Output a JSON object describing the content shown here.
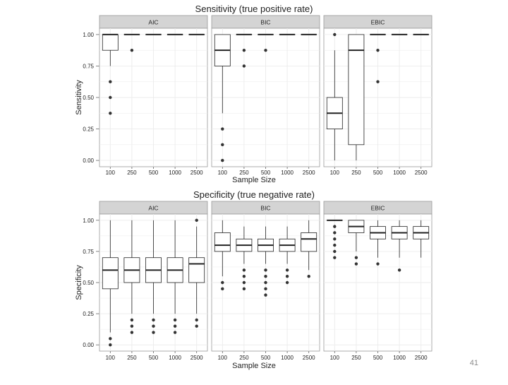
{
  "slide": {
    "number": "41"
  },
  "colors": {
    "strip": "#d4d4d4",
    "panel_border": "#9a9a9a",
    "grid": "#ebebeb",
    "box": "#222222"
  },
  "chart_data": [
    {
      "type": "boxplot",
      "title": "Sensitivity (true positive rate)",
      "xlabel": "Sample Size",
      "ylabel": "Sensitivity",
      "ylim": [
        0,
        1
      ],
      "yticks": [
        "0.00",
        "0.25",
        "0.50",
        "0.75",
        "1.00"
      ],
      "categories": [
        "100",
        "250",
        "500",
        "1000",
        "2500"
      ],
      "grid": true,
      "facets": [
        {
          "name": "AIC",
          "boxes": [
            {
              "q1": 0.875,
              "median": 1.0,
              "q3": 1.0,
              "whislo": 0.75,
              "whishi": 1.0,
              "fliers": [
                0.625,
                0.5,
                0.375
              ]
            },
            {
              "q1": 1.0,
              "median": 1.0,
              "q3": 1.0,
              "whislo": 1.0,
              "whishi": 1.0,
              "fliers": [
                0.875
              ]
            },
            {
              "q1": 1.0,
              "median": 1.0,
              "q3": 1.0,
              "whislo": 1.0,
              "whishi": 1.0,
              "fliers": []
            },
            {
              "q1": 1.0,
              "median": 1.0,
              "q3": 1.0,
              "whislo": 1.0,
              "whishi": 1.0,
              "fliers": []
            },
            {
              "q1": 1.0,
              "median": 1.0,
              "q3": 1.0,
              "whislo": 1.0,
              "whishi": 1.0,
              "fliers": []
            }
          ]
        },
        {
          "name": "BIC",
          "boxes": [
            {
              "q1": 0.75,
              "median": 0.875,
              "q3": 1.0,
              "whislo": 0.375,
              "whishi": 1.0,
              "fliers": [
                0.25,
                0.125,
                0.0
              ]
            },
            {
              "q1": 1.0,
              "median": 1.0,
              "q3": 1.0,
              "whislo": 1.0,
              "whishi": 1.0,
              "fliers": [
                0.875,
                0.75
              ]
            },
            {
              "q1": 1.0,
              "median": 1.0,
              "q3": 1.0,
              "whislo": 1.0,
              "whishi": 1.0,
              "fliers": [
                0.875
              ]
            },
            {
              "q1": 1.0,
              "median": 1.0,
              "q3": 1.0,
              "whislo": 1.0,
              "whishi": 1.0,
              "fliers": []
            },
            {
              "q1": 1.0,
              "median": 1.0,
              "q3": 1.0,
              "whislo": 1.0,
              "whishi": 1.0,
              "fliers": []
            }
          ]
        },
        {
          "name": "EBIC",
          "boxes": [
            {
              "q1": 0.25,
              "median": 0.375,
              "q3": 0.5,
              "whislo": 0.0,
              "whishi": 0.875,
              "fliers": [
                1.0
              ]
            },
            {
              "q1": 0.125,
              "median": 0.875,
              "q3": 1.0,
              "whislo": 0.0,
              "whishi": 1.0,
              "fliers": []
            },
            {
              "q1": 1.0,
              "median": 1.0,
              "q3": 1.0,
              "whislo": 1.0,
              "whishi": 1.0,
              "fliers": [
                0.875,
                0.625
              ]
            },
            {
              "q1": 1.0,
              "median": 1.0,
              "q3": 1.0,
              "whislo": 1.0,
              "whishi": 1.0,
              "fliers": []
            },
            {
              "q1": 1.0,
              "median": 1.0,
              "q3": 1.0,
              "whislo": 1.0,
              "whishi": 1.0,
              "fliers": []
            }
          ]
        }
      ]
    },
    {
      "type": "boxplot",
      "title": "Specificity (true negative rate)",
      "xlabel": "Sample Size",
      "ylabel": "Specificity",
      "ylim": [
        0,
        1
      ],
      "yticks": [
        "0.00",
        "0.25",
        "0.50",
        "0.75",
        "1.00"
      ],
      "categories": [
        "100",
        "250",
        "500",
        "1000",
        "2500"
      ],
      "grid": true,
      "facets": [
        {
          "name": "AIC",
          "boxes": [
            {
              "q1": 0.45,
              "median": 0.6,
              "q3": 0.7,
              "whislo": 0.1,
              "whishi": 1.0,
              "fliers": [
                0.05,
                0.0
              ]
            },
            {
              "q1": 0.5,
              "median": 0.6,
              "q3": 0.7,
              "whislo": 0.25,
              "whishi": 1.0,
              "fliers": [
                0.2,
                0.15,
                0.1
              ]
            },
            {
              "q1": 0.5,
              "median": 0.6,
              "q3": 0.7,
              "whislo": 0.25,
              "whishi": 1.0,
              "fliers": [
                0.2,
                0.15,
                0.1
              ]
            },
            {
              "q1": 0.5,
              "median": 0.6,
              "q3": 0.7,
              "whislo": 0.25,
              "whishi": 1.0,
              "fliers": [
                0.2,
                0.15,
                0.1
              ]
            },
            {
              "q1": 0.5,
              "median": 0.65,
              "q3": 0.7,
              "whislo": 0.25,
              "whishi": 0.95,
              "fliers": [
                1.0,
                0.2,
                0.15
              ]
            }
          ]
        },
        {
          "name": "BIC",
          "boxes": [
            {
              "q1": 0.75,
              "median": 0.8,
              "q3": 0.9,
              "whislo": 0.55,
              "whishi": 1.0,
              "fliers": [
                0.5,
                0.45
              ]
            },
            {
              "q1": 0.75,
              "median": 0.8,
              "q3": 0.85,
              "whislo": 0.65,
              "whishi": 0.95,
              "fliers": [
                0.6,
                0.55,
                0.5,
                0.45
              ]
            },
            {
              "q1": 0.75,
              "median": 0.8,
              "q3": 0.85,
              "whislo": 0.65,
              "whishi": 0.95,
              "fliers": [
                0.6,
                0.55,
                0.5,
                0.45,
                0.4
              ]
            },
            {
              "q1": 0.75,
              "median": 0.8,
              "q3": 0.85,
              "whislo": 0.65,
              "whishi": 0.95,
              "fliers": [
                0.6,
                0.55,
                0.5
              ]
            },
            {
              "q1": 0.75,
              "median": 0.85,
              "q3": 0.9,
              "whislo": 0.6,
              "whishi": 1.0,
              "fliers": [
                0.55
              ]
            }
          ]
        },
        {
          "name": "EBIC",
          "boxes": [
            {
              "q1": 1.0,
              "median": 1.0,
              "q3": 1.0,
              "whislo": 1.0,
              "whishi": 1.0,
              "fliers": [
                0.95,
                0.9,
                0.85,
                0.8,
                0.75,
                0.7
              ]
            },
            {
              "q1": 0.9,
              "median": 0.95,
              "q3": 1.0,
              "whislo": 0.75,
              "whishi": 1.0,
              "fliers": [
                0.7,
                0.65
              ]
            },
            {
              "q1": 0.85,
              "median": 0.9,
              "q3": 0.95,
              "whislo": 0.7,
              "whishi": 1.0,
              "fliers": [
                0.65
              ]
            },
            {
              "q1": 0.85,
              "median": 0.9,
              "q3": 0.95,
              "whislo": 0.7,
              "whishi": 1.0,
              "fliers": [
                0.6
              ]
            },
            {
              "q1": 0.85,
              "median": 0.9,
              "q3": 0.95,
              "whislo": 0.7,
              "whishi": 1.0,
              "fliers": []
            }
          ]
        }
      ]
    }
  ]
}
